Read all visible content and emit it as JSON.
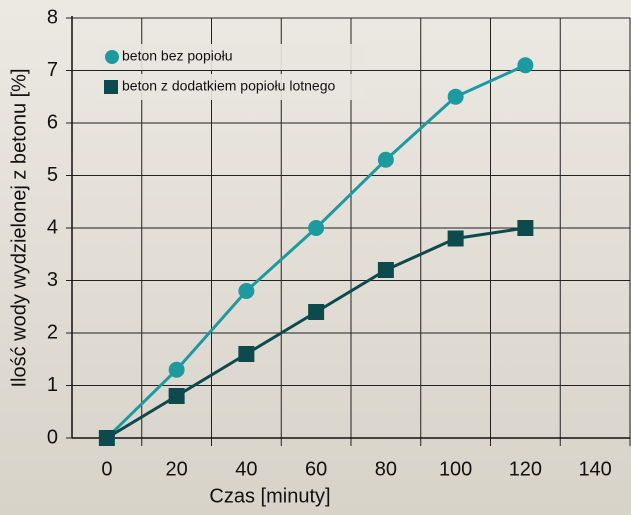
{
  "chart_data": {
    "type": "line",
    "x_label": "Czas [minuty]",
    "y_label": "Ilość wody wydzielonej z betonu [%]",
    "x": [
      0,
      20,
      40,
      60,
      80,
      100,
      120
    ],
    "series": [
      {
        "name": "beton bez popiołu",
        "color": "#1b9aa0",
        "marker": "circle",
        "values": [
          0,
          1.3,
          2.8,
          4.0,
          5.3,
          6.5,
          7.1
        ]
      },
      {
        "name": "beton z dodatkiem popiołu lotnego",
        "color": "#0d4a4e",
        "marker": "square",
        "values": [
          0,
          0.8,
          1.6,
          2.4,
          3.2,
          3.8,
          4.0
        ]
      }
    ],
    "xlim": [
      -10,
      150
    ],
    "ylim": [
      0,
      8
    ],
    "xticks": [
      0,
      20,
      40,
      60,
      80,
      100,
      120,
      140
    ],
    "yticks": [
      0,
      1,
      2,
      3,
      4,
      5,
      6,
      7,
      8
    ],
    "grid": true,
    "legend": "upper left"
  }
}
